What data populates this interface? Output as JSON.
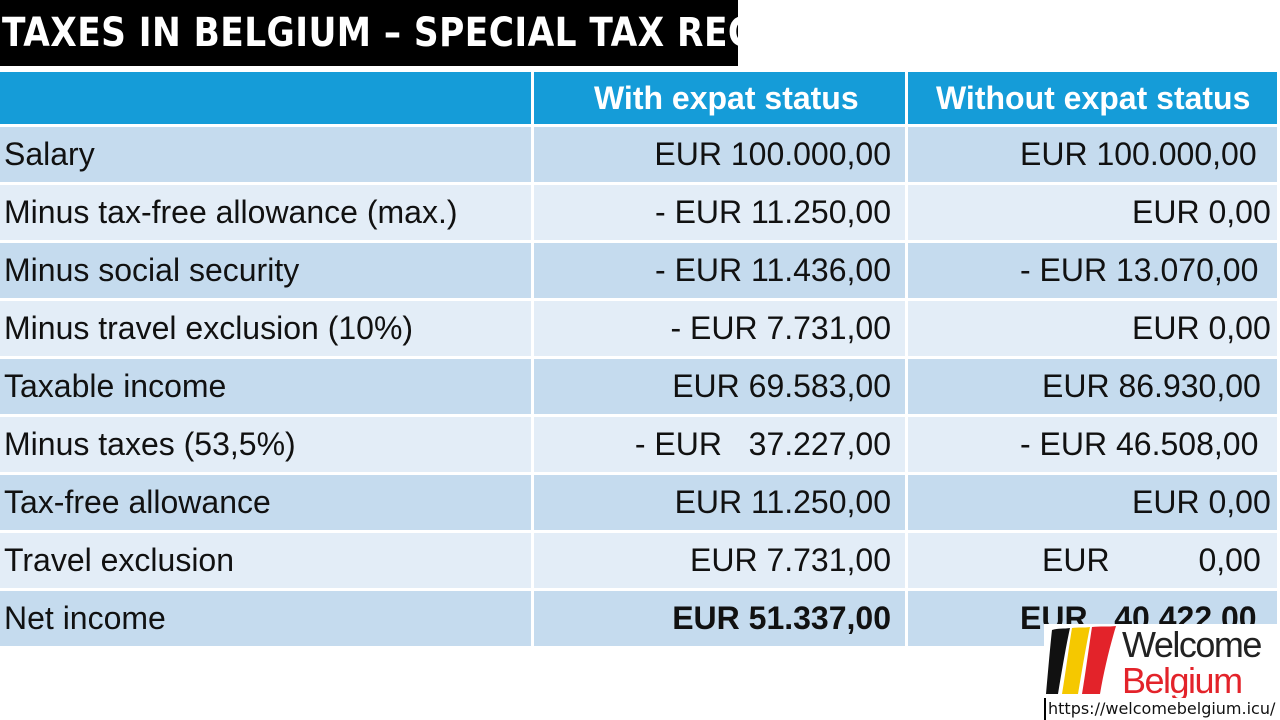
{
  "title": "TAXES IN BELGIUM – SPECIAL TAX REGIME",
  "table": {
    "headers": [
      "",
      "With expat status",
      "Without expat status"
    ],
    "rows": [
      {
        "label": "Salary",
        "with": "EUR 100.000,00",
        "without": "EUR 100.000,00"
      },
      {
        "label": "Minus tax-free allowance (max.)",
        "with": "- EUR 11.250,00",
        "without": "EUR 0,00"
      },
      {
        "label": "Minus social security",
        "with": "- EUR 11.436,00",
        "without": "- EUR 13.070,00"
      },
      {
        "label": "Minus travel exclusion (10%)",
        "with": "- EUR 7.731,00",
        "without": "EUR 0,00"
      },
      {
        "label": "Taxable income",
        "with": "EUR 69.583,00",
        "without": "EUR 86.930,00"
      },
      {
        "label": "Minus taxes (53,5%)",
        "with": "- EUR   37.227,00",
        "without": "- EUR 46.508,00"
      },
      {
        "label": "Tax-free allowance",
        "with": "EUR 11.250,00",
        "without": "EUR 0,00"
      },
      {
        "label": "Travel exclusion",
        "with": "EUR 7.731,00",
        "without": "EUR          0,00"
      },
      {
        "label": "Net income",
        "with": "EUR 51.337,00",
        "without": "EUR   40.422,00"
      }
    ]
  },
  "logo": {
    "line1": "Welcome",
    "line2": "Belgium",
    "colors": [
      "#111111",
      "#f5c800",
      "#e3232a"
    ]
  },
  "url": "https://welcomebelgium.icu/"
}
